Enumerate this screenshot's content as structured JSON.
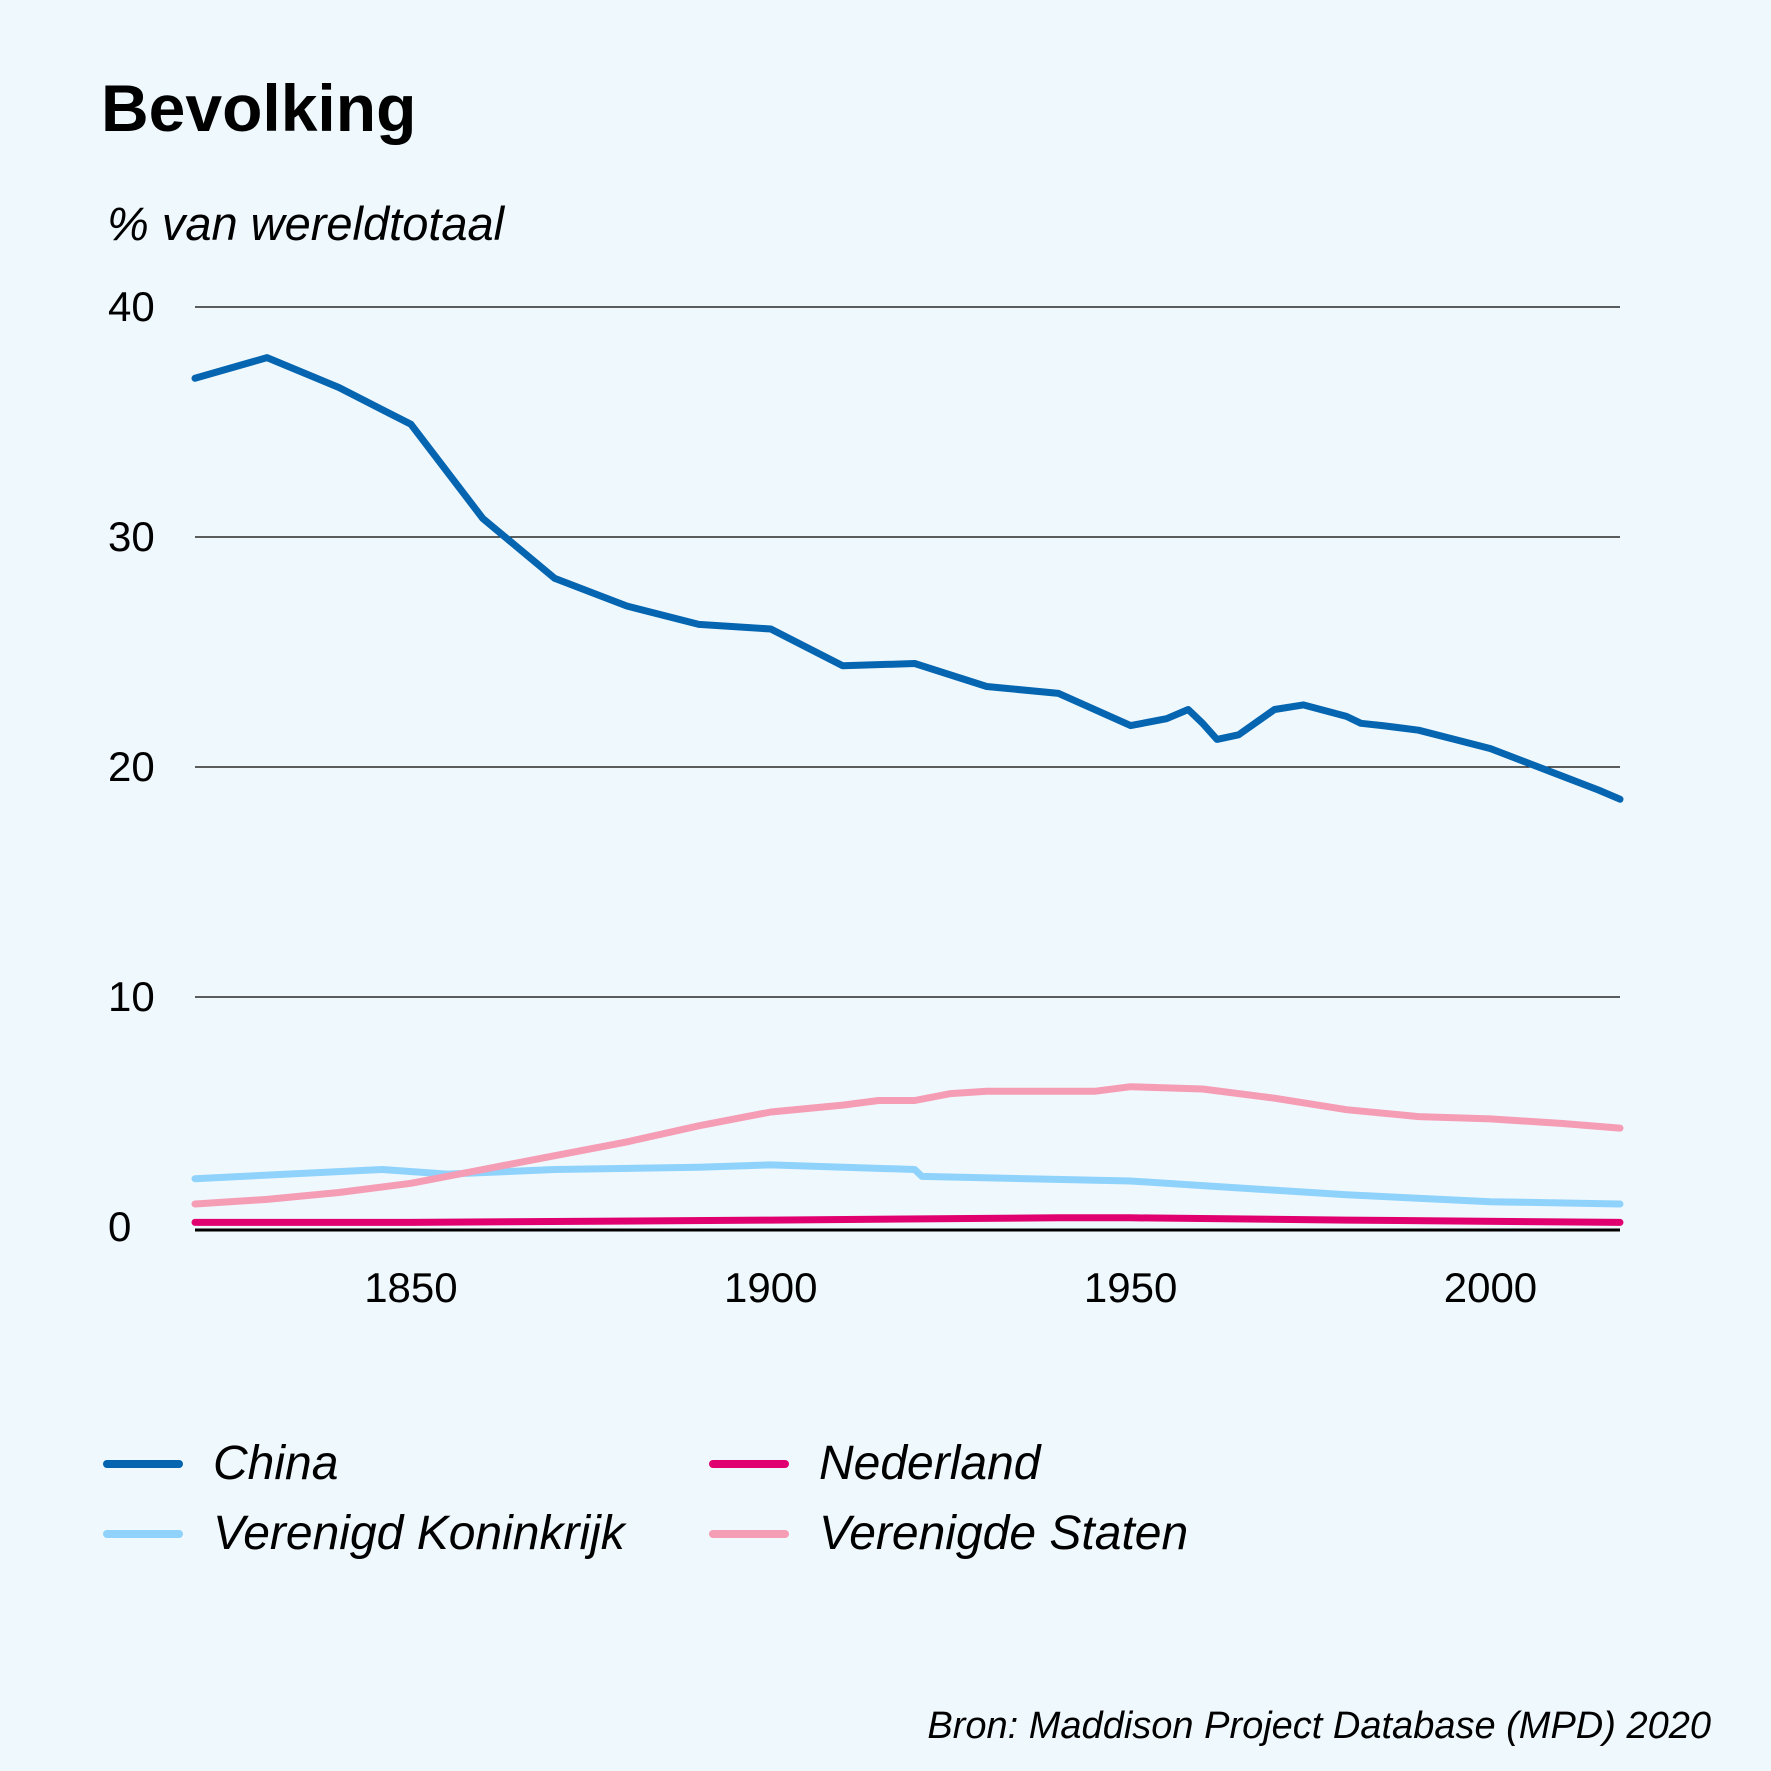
{
  "chart_data": {
    "type": "line",
    "title": "Bevolking",
    "ylabel": "% van wereldtotaal",
    "xlabel": "",
    "xlim": [
      1820,
      2018
    ],
    "ylim": [
      0,
      40
    ],
    "yticks": [
      0,
      10,
      20,
      30,
      40
    ],
    "xticks": [
      1850,
      1900,
      1950,
      2000
    ],
    "grid": true,
    "legend_position": "bottom",
    "series": [
      {
        "name": "China",
        "color": "#0565b0",
        "points": [
          [
            1820,
            36.9
          ],
          [
            1830,
            37.8
          ],
          [
            1840,
            36.5
          ],
          [
            1850,
            34.9
          ],
          [
            1860,
            30.8
          ],
          [
            1870,
            28.2
          ],
          [
            1880,
            27.0
          ],
          [
            1890,
            26.2
          ],
          [
            1900,
            26.0
          ],
          [
            1910,
            24.4
          ],
          [
            1920,
            24.5
          ],
          [
            1930,
            23.5
          ],
          [
            1940,
            23.2
          ],
          [
            1950,
            21.8
          ],
          [
            1955,
            22.1
          ],
          [
            1958,
            22.5
          ],
          [
            1960,
            21.9
          ],
          [
            1962,
            21.2
          ],
          [
            1965,
            21.4
          ],
          [
            1970,
            22.5
          ],
          [
            1974,
            22.7
          ],
          [
            1980,
            22.2
          ],
          [
            1982,
            21.9
          ],
          [
            1985,
            21.8
          ],
          [
            1990,
            21.6
          ],
          [
            1995,
            21.2
          ],
          [
            2000,
            20.8
          ],
          [
            2005,
            20.2
          ],
          [
            2010,
            19.6
          ],
          [
            2015,
            19.0
          ],
          [
            2018,
            18.6
          ]
        ]
      },
      {
        "name": "Nederland",
        "color": "#e00070",
        "points": [
          [
            1820,
            0.2
          ],
          [
            1850,
            0.2
          ],
          [
            1900,
            0.3
          ],
          [
            1940,
            0.4
          ],
          [
            1950,
            0.4
          ],
          [
            1980,
            0.3
          ],
          [
            2018,
            0.2
          ]
        ]
      },
      {
        "name": "Verenigd Koninkrijk",
        "color": "#8fd3fc",
        "points": [
          [
            1820,
            2.1
          ],
          [
            1846,
            2.5
          ],
          [
            1855,
            2.3
          ],
          [
            1870,
            2.5
          ],
          [
            1890,
            2.6
          ],
          [
            1900,
            2.7
          ],
          [
            1920,
            2.5
          ],
          [
            1921,
            2.2
          ],
          [
            1950,
            2.0
          ],
          [
            1960,
            1.8
          ],
          [
            1980,
            1.4
          ],
          [
            2000,
            1.1
          ],
          [
            2018,
            1.0
          ]
        ]
      },
      {
        "name": "Verenigde Staten",
        "color": "#f59db5",
        "points": [
          [
            1820,
            1.0
          ],
          [
            1830,
            1.2
          ],
          [
            1840,
            1.5
          ],
          [
            1850,
            1.9
          ],
          [
            1860,
            2.5
          ],
          [
            1870,
            3.1
          ],
          [
            1880,
            3.7
          ],
          [
            1890,
            4.4
          ],
          [
            1900,
            5.0
          ],
          [
            1910,
            5.3
          ],
          [
            1915,
            5.5
          ],
          [
            1920,
            5.5
          ],
          [
            1925,
            5.8
          ],
          [
            1930,
            5.9
          ],
          [
            1940,
            5.9
          ],
          [
            1945,
            5.9
          ],
          [
            1950,
            6.1
          ],
          [
            1960,
            6.0
          ],
          [
            1970,
            5.6
          ],
          [
            1980,
            5.1
          ],
          [
            1990,
            4.8
          ],
          [
            2000,
            4.7
          ],
          [
            2010,
            4.5
          ],
          [
            2018,
            4.3
          ]
        ]
      }
    ],
    "source": "Bron: Maddison Project Database (MPD) 2020"
  },
  "legend_order": [
    "China",
    "Nederland",
    "Verenigd Koninkrijk",
    "Verenigde Staten"
  ]
}
